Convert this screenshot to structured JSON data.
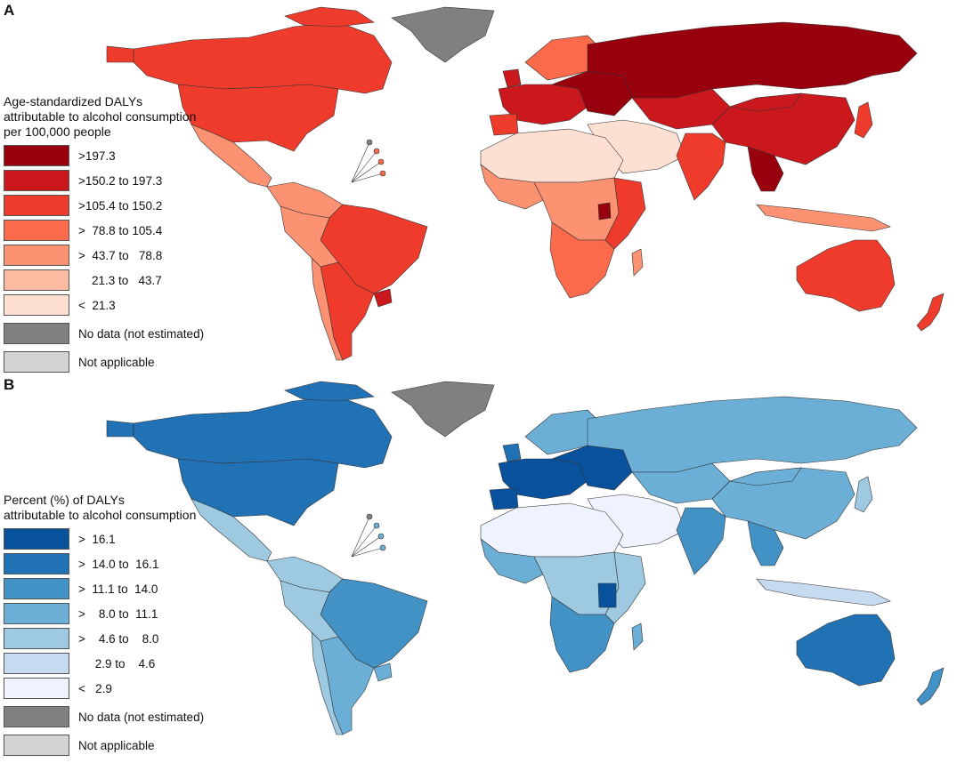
{
  "panels": [
    {
      "label": "A",
      "legend_title_lines": [
        "Age-standardized DALYs",
        "attributable to alcohol consumption",
        "per 100,000 people"
      ],
      "classes": [
        {
          "label": ">197.3",
          "color": "#99000d"
        },
        {
          "label": ">150.2 to 197.3",
          "color": "#cb181d"
        },
        {
          "label": ">105.4 to 150.2",
          "color": "#ef3b2c"
        },
        {
          "label": ">  78.8 to 105.4",
          "color": "#fb6a4a"
        },
        {
          "label": ">  43.7 to   78.8",
          "color": "#fc9272"
        },
        {
          "label": "    21.3 to   43.7",
          "color": "#fcbba1"
        },
        {
          "label": "<  21.3",
          "color": "#fee0d2"
        }
      ],
      "extra": [
        {
          "label": "No data (not estimated)",
          "color": "#808080"
        },
        {
          "label": "Not applicable",
          "color": "#d4d4d4"
        }
      ]
    },
    {
      "label": "B",
      "legend_title_lines": [
        "Percent (%) of DALYs",
        "attributable to alcohol consumption"
      ],
      "classes": [
        {
          "label": ">  16.1",
          "color": "#08519c"
        },
        {
          "label": ">  14.0 to  16.1",
          "color": "#2171b5"
        },
        {
          "label": ">  11.1 to  14.0",
          "color": "#4292c6"
        },
        {
          "label": ">    8.0 to  11.1",
          "color": "#6baed6"
        },
        {
          "label": ">    4.6 to    8.0",
          "color": "#9ecae1"
        },
        {
          "label": "     2.9 to    4.6",
          "color": "#c6dbef"
        },
        {
          "label": "<   2.9",
          "color": "#eff3ff"
        }
      ],
      "extra": [
        {
          "label": "No data (not estimated)",
          "color": "#808080"
        },
        {
          "label": "Not applicable",
          "color": "#d4d4d4"
        }
      ]
    }
  ]
}
